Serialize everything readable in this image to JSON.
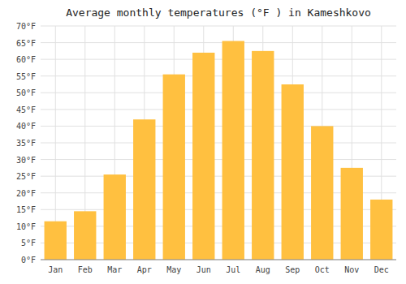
{
  "chart_data": {
    "type": "bar",
    "title": "Average monthly temperatures (°F ) in Kameshkovo",
    "categories": [
      "Jan",
      "Feb",
      "Mar",
      "Apr",
      "May",
      "Jun",
      "Jul",
      "Aug",
      "Sep",
      "Oct",
      "Nov",
      "Dec"
    ],
    "values": [
      11.5,
      14.5,
      25.5,
      42.0,
      55.5,
      62.0,
      65.5,
      62.5,
      52.5,
      40.0,
      27.5,
      18.0
    ],
    "color": "#FFC040",
    "ylim": [
      0,
      70
    ],
    "yticks": [
      {
        "value": 0,
        "label": "0°F"
      },
      {
        "value": 5,
        "label": "5°F"
      },
      {
        "value": 10,
        "label": "10°F"
      },
      {
        "value": 15,
        "label": "15°F"
      },
      {
        "value": 20,
        "label": "20°F"
      },
      {
        "value": 25,
        "label": "25°F"
      },
      {
        "value": 30,
        "label": "30°F"
      },
      {
        "value": 35,
        "label": "35°F"
      },
      {
        "value": 40,
        "label": "40°F"
      },
      {
        "value": 45,
        "label": "45°F"
      },
      {
        "value": 50,
        "label": "50°F"
      },
      {
        "value": 55,
        "label": "55°F"
      },
      {
        "value": 60,
        "label": "60°F"
      },
      {
        "value": 65,
        "label": "65°F"
      },
      {
        "value": 70,
        "label": "70°F"
      }
    ],
    "grid": true
  }
}
